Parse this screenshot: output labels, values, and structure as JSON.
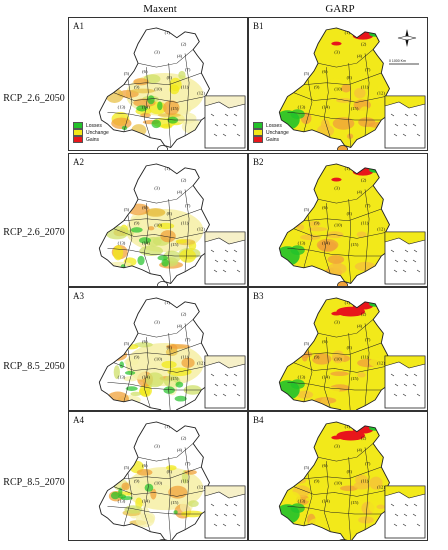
{
  "figure": {
    "columns": [
      "Maxent",
      "GARP"
    ],
    "rows": [
      "RCP_2.6_2050",
      "RCP_2.6_2070",
      "RCP_8.5_2050",
      "RCP_8.5_2070"
    ],
    "panels": {
      "maxent": [
        "A1",
        "A2",
        "A3",
        "A4"
      ],
      "garp": [
        "B1",
        "B2",
        "B3",
        "B4"
      ]
    },
    "legend": {
      "items": [
        {
          "label": "Losses",
          "color": "#22c22a"
        },
        {
          "label": "Unchange",
          "color": "#f2e91a"
        },
        {
          "label": "Gains",
          "color": "#e8161b"
        }
      ]
    },
    "scale_label": "0 1000 Km",
    "region_numbers": [
      "(1)",
      "(2)",
      "(3)",
      "(4)",
      "(5)",
      "(6)",
      "(7)",
      "(8)",
      "(9)",
      "(10)",
      "(11)",
      "(12)",
      "(13)",
      "(14)",
      "(15)"
    ],
    "colors": {
      "loss": "#22c22a",
      "unchange": "#f2e91a",
      "gain": "#e8161b",
      "orange": "#f0a23a",
      "pale": "#f6f0a8",
      "outline": "#222222"
    },
    "north_icon": "compass-rose-icon"
  }
}
